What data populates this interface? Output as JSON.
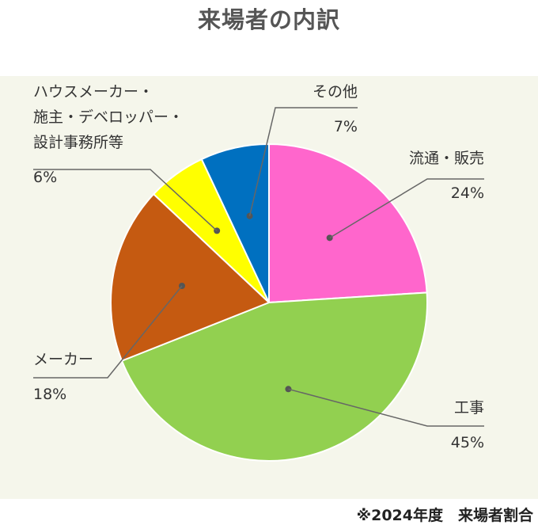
{
  "title": "来場者の内訳",
  "note": "※2024年度　来場者割合",
  "chart_data": {
    "type": "pie",
    "title": "来場者の内訳",
    "slices": [
      {
        "label": "流通・販売",
        "value": 24,
        "pct": "24%",
        "color": "#ff66cc"
      },
      {
        "label": "工事",
        "value": 45,
        "pct": "45%",
        "color": "#92d050"
      },
      {
        "label": "メーカー",
        "value": 18,
        "pct": "18%",
        "color": "#c55a11"
      },
      {
        "label": "ハウスメーカー・施主・デベロッパー・設計事務所等",
        "label_lines": [
          "ハウスメーカー・",
          "施主・デベロッパー・",
          "設計事務所等"
        ],
        "value": 6,
        "pct": "6%",
        "color": "#ffff00"
      },
      {
        "label": "その他",
        "value": 7,
        "pct": "7%",
        "color": "#0070c0"
      }
    ],
    "start_angle": "12 o'clock",
    "direction": "clockwise"
  }
}
